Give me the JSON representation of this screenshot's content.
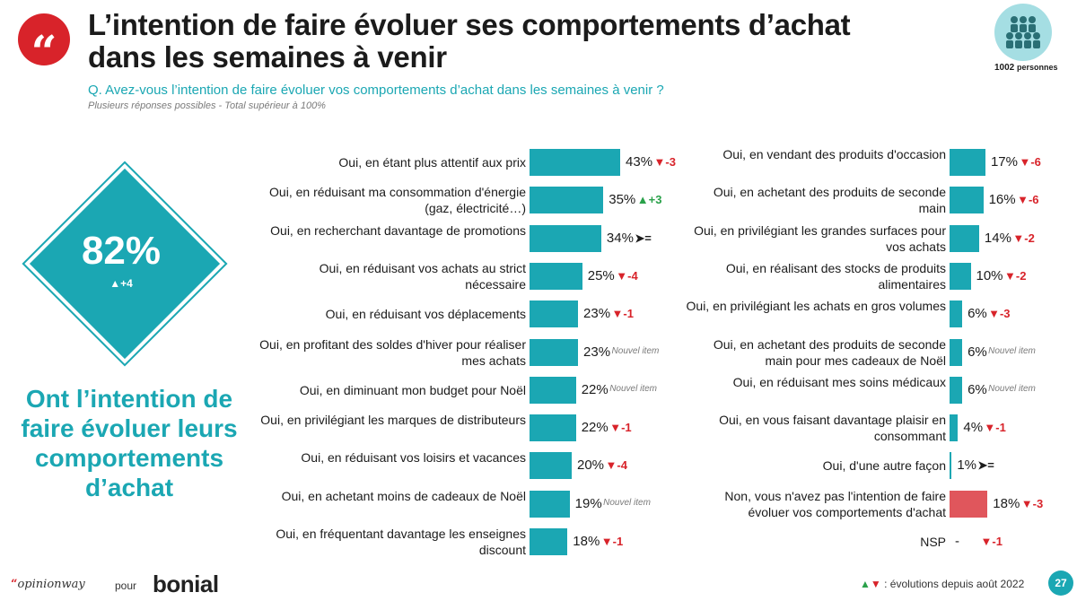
{
  "header": {
    "title_line1": "L’intention de faire évoluer ses comportements d’achat",
    "title_line2": "dans les semaines à venir",
    "question": "Q. Avez-vous l’intention de faire évoluer vos comportements d’achat dans les semaines à venir ?",
    "note": "Plusieurs réponses possibles - Total supérieur à 100%"
  },
  "sample": {
    "count": "1002",
    "unit": "personnes",
    "icon": "group-of-people-icon"
  },
  "summary": {
    "value": "82%",
    "delta": "+4",
    "text": "Ont l’intention de faire évoluer leurs comportements d’achat"
  },
  "chart_data": {
    "type": "bar",
    "orientation": "horizontal",
    "unit": "%",
    "colors": {
      "bar": "#1ba7b3",
      "negative_bar": "#e0565c",
      "down": "#d8232a",
      "up": "#2aa14a"
    },
    "left": [
      {
        "label": "Oui, en étant plus attentif aux prix",
        "value": 43,
        "display": "43%",
        "delta": "-3",
        "trend": "down"
      },
      {
        "label": "Oui, en réduisant ma consommation d'énergie (gaz, électricité…)",
        "value": 35,
        "display": "35%",
        "delta": "+3",
        "trend": "up"
      },
      {
        "label": "Oui, en recherchant davantage de promotions",
        "value": 34,
        "display": "34%",
        "delta": "=",
        "trend": "eq"
      },
      {
        "label": "Oui, en réduisant vos achats au strict nécessaire",
        "value": 25,
        "display": "25%",
        "delta": "-4",
        "trend": "down"
      },
      {
        "label": "Oui, en réduisant vos déplacements",
        "value": 23,
        "display": "23%",
        "delta": "-1",
        "trend": "down"
      },
      {
        "label": "Oui, en profitant des soldes d'hiver pour réaliser mes achats",
        "value": 23,
        "display": "23%",
        "delta": "Nouvel item",
        "trend": "new"
      },
      {
        "label": "Oui, en diminuant mon budget pour Noël",
        "value": 22,
        "display": "22%",
        "delta": "Nouvel item",
        "trend": "new"
      },
      {
        "label": "Oui, en privilégiant les marques de distributeurs",
        "value": 22,
        "display": "22%",
        "delta": "-1",
        "trend": "down"
      },
      {
        "label": "Oui, en réduisant vos loisirs et vacances",
        "value": 20,
        "display": "20%",
        "delta": "-4",
        "trend": "down"
      },
      {
        "label": "Oui, en achetant moins de cadeaux de Noël",
        "value": 19,
        "display": "19%",
        "delta": "Nouvel item",
        "trend": "new"
      },
      {
        "label": "Oui, en fréquentant davantage les enseignes discount",
        "value": 18,
        "display": "18%",
        "delta": "-1",
        "trend": "down"
      }
    ],
    "right": [
      {
        "label": "Oui, en vendant des produits d'occasion",
        "value": 17,
        "display": "17%",
        "delta": "-6",
        "trend": "down"
      },
      {
        "label": "Oui, en achetant des produits de seconde main",
        "value": 16,
        "display": "16%",
        "delta": "-6",
        "trend": "down"
      },
      {
        "label": "Oui, en privilégiant les grandes surfaces pour vos achats",
        "value": 14,
        "display": "14%",
        "delta": "-2",
        "trend": "down"
      },
      {
        "label": "Oui, en réalisant des stocks de produits alimentaires",
        "value": 10,
        "display": "10%",
        "delta": "-2",
        "trend": "down"
      },
      {
        "label": "Oui, en privilégiant les achats en gros volumes",
        "value": 6,
        "display": "6%",
        "delta": "-3",
        "trend": "down"
      },
      {
        "label": "Oui, en achetant des produits de seconde main pour mes cadeaux de Noël",
        "value": 6,
        "display": "6%",
        "delta": "Nouvel item",
        "trend": "new"
      },
      {
        "label": "Oui, en réduisant mes soins médicaux",
        "value": 6,
        "display": "6%",
        "delta": "Nouvel item",
        "trend": "new"
      },
      {
        "label": "Oui, en vous faisant davantage plaisir en consommant",
        "value": 4,
        "display": "4%",
        "delta": "-1",
        "trend": "down"
      },
      {
        "label": "Oui, d'une autre façon",
        "value": 1,
        "display": "1%",
        "delta": "=",
        "trend": "eq"
      },
      {
        "label": "Non, vous n'avez pas l'intention de faire évoluer vos comportements d'achat",
        "value": 18,
        "display": "18%",
        "delta": "-3",
        "trend": "down",
        "negative": true
      },
      {
        "label": "NSP",
        "value": 0,
        "display": "-",
        "delta": "-1",
        "trend": "down"
      }
    ]
  },
  "footer": {
    "brand1": "opinionway",
    "pour": "pour",
    "brand2": "bonial",
    "legend": ": évolutions depuis août 2022",
    "page": "27"
  }
}
